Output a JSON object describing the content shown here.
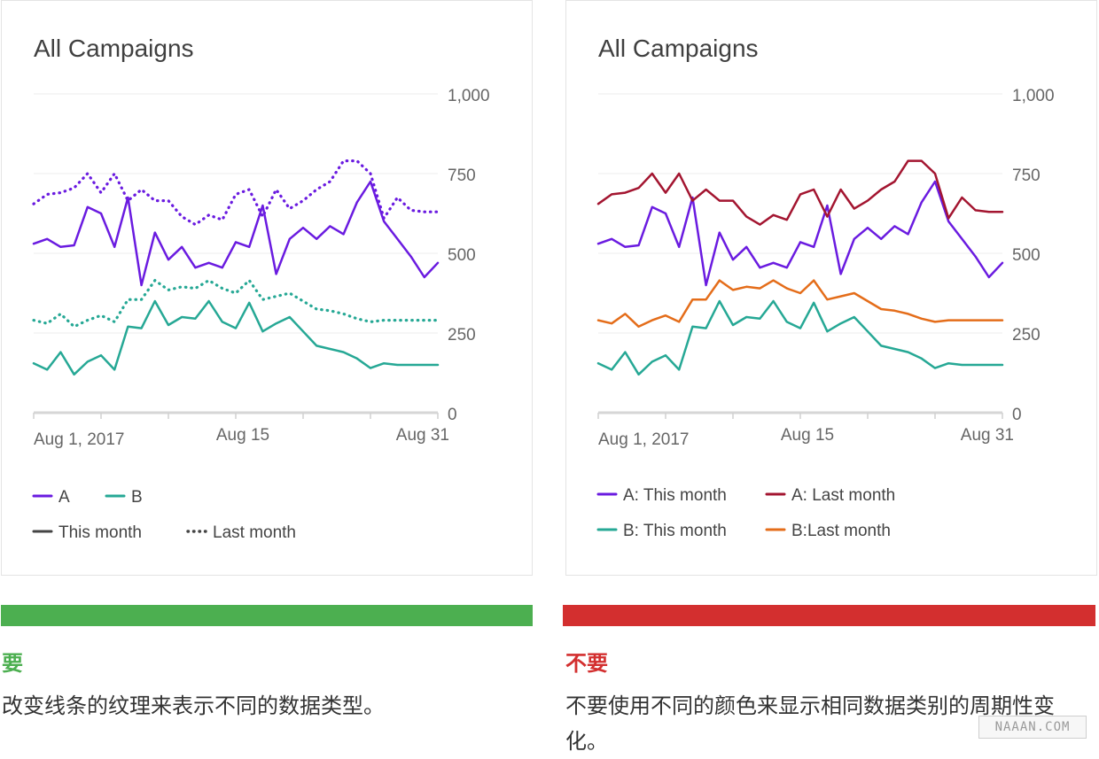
{
  "colors": {
    "A_this": "#6a1be0",
    "B_this": "#26a895",
    "A_last_right": "#a31530",
    "B_last_right": "#e46d1a",
    "neutral": "#444444",
    "good": "#4caf50",
    "bad": "#d32f2f"
  },
  "chart_data": [
    {
      "type": "line",
      "title": "All Campaigns",
      "ylim": [
        0,
        1000
      ],
      "yticks": [
        "1,000",
        "750",
        "500",
        "250",
        "0"
      ],
      "xticks": [
        "Aug 1, 2017",
        "Aug 15",
        "Aug 31"
      ],
      "x": [
        1,
        2,
        3,
        4,
        5,
        6,
        7,
        8,
        9,
        10,
        11,
        12,
        13,
        14,
        15,
        16,
        17,
        18,
        19,
        20,
        21,
        22,
        23,
        24,
        25,
        26,
        27,
        28,
        29,
        30,
        31
      ],
      "grid": true,
      "legend": {
        "placement": "bottom",
        "items": [
          {
            "label": "A",
            "style": "line",
            "color": "A_this"
          },
          {
            "label": "B",
            "style": "line",
            "color": "B_this"
          },
          {
            "label": "This month",
            "style": "line",
            "color": "neutral"
          },
          {
            "label": "Last month",
            "style": "dotted",
            "color": "neutral"
          }
        ]
      },
      "series": [
        {
          "key": "A: This month",
          "color": "A_this",
          "style": "solid",
          "values": [
            530,
            545,
            520,
            525,
            645,
            625,
            520,
            675,
            400,
            565,
            480,
            520,
            455,
            470,
            455,
            535,
            520,
            650,
            435,
            545,
            580,
            545,
            585,
            560,
            660,
            725,
            600,
            545,
            490,
            425,
            470
          ]
        },
        {
          "key": "A: Last month",
          "color": "A_this",
          "style": "dotted",
          "values": [
            655,
            685,
            690,
            705,
            750,
            690,
            750,
            665,
            700,
            665,
            665,
            615,
            590,
            620,
            605,
            685,
            700,
            615,
            700,
            640,
            665,
            700,
            725,
            790,
            790,
            750,
            610,
            675,
            635,
            630,
            630
          ]
        },
        {
          "key": "B: This month",
          "color": "B_this",
          "style": "solid",
          "values": [
            155,
            135,
            190,
            120,
            160,
            180,
            135,
            270,
            265,
            350,
            275,
            300,
            295,
            350,
            285,
            265,
            345,
            255,
            280,
            300,
            255,
            210,
            200,
            190,
            170,
            140,
            155,
            150,
            150,
            150,
            150
          ]
        },
        {
          "key": "B: Last month",
          "color": "B_this",
          "style": "dotted",
          "values": [
            290,
            280,
            310,
            270,
            290,
            305,
            285,
            355,
            355,
            415,
            385,
            395,
            390,
            415,
            390,
            375,
            415,
            355,
            365,
            375,
            350,
            325,
            320,
            310,
            295,
            285,
            290,
            290,
            290,
            290,
            290
          ]
        }
      ]
    },
    {
      "type": "line",
      "title": "All Campaigns",
      "ylim": [
        0,
        1000
      ],
      "yticks": [
        "1,000",
        "750",
        "500",
        "250",
        "0"
      ],
      "xticks": [
        "Aug 1, 2017",
        "Aug 15",
        "Aug 31"
      ],
      "x": [
        1,
        2,
        3,
        4,
        5,
        6,
        7,
        8,
        9,
        10,
        11,
        12,
        13,
        14,
        15,
        16,
        17,
        18,
        19,
        20,
        21,
        22,
        23,
        24,
        25,
        26,
        27,
        28,
        29,
        30,
        31
      ],
      "grid": true,
      "legend": {
        "placement": "bottom",
        "items": [
          {
            "label": "A: This month",
            "style": "line",
            "color": "A_this"
          },
          {
            "label": "A: Last month",
            "style": "line",
            "color": "A_last_right"
          },
          {
            "label": "B: This month",
            "style": "line",
            "color": "B_this"
          },
          {
            "label": "B:Last month",
            "style": "line",
            "color": "B_last_right"
          }
        ]
      },
      "series": [
        {
          "name": "A: This month",
          "color": "A_this",
          "style": "solid",
          "values": [
            530,
            545,
            520,
            525,
            645,
            625,
            520,
            675,
            400,
            565,
            480,
            520,
            455,
            470,
            455,
            535,
            520,
            650,
            435,
            545,
            580,
            545,
            585,
            560,
            660,
            725,
            600,
            545,
            490,
            425,
            470
          ]
        },
        {
          "name": "A: Last month",
          "color": "A_last_right",
          "style": "solid",
          "values": [
            655,
            685,
            690,
            705,
            750,
            690,
            750,
            665,
            700,
            665,
            665,
            615,
            590,
            620,
            605,
            685,
            700,
            615,
            700,
            640,
            665,
            700,
            725,
            790,
            790,
            750,
            610,
            675,
            635,
            630,
            630
          ]
        },
        {
          "name": "B: This month",
          "color": "B_this",
          "style": "solid",
          "values": [
            155,
            135,
            190,
            120,
            160,
            180,
            135,
            270,
            265,
            350,
            275,
            300,
            295,
            350,
            285,
            265,
            345,
            255,
            280,
            300,
            255,
            210,
            200,
            190,
            170,
            140,
            155,
            150,
            150,
            150,
            150
          ]
        },
        {
          "name": "B:Last month",
          "color": "B_last_right",
          "style": "solid",
          "values": [
            290,
            280,
            310,
            270,
            290,
            305,
            285,
            355,
            355,
            415,
            385,
            395,
            390,
            415,
            390,
            375,
            415,
            355,
            365,
            375,
            350,
            325,
            320,
            310,
            295,
            285,
            290,
            290,
            290,
            290,
            290
          ]
        }
      ]
    }
  ],
  "left_panel": {
    "verdict": "要",
    "description": "改变线条的纹理来表示不同的数据类型。"
  },
  "right_panel": {
    "verdict": "不要",
    "description": "不要使用不同的颜色来显示相同数据类别的周期性变化。"
  },
  "watermark": "NAAAN.COM"
}
